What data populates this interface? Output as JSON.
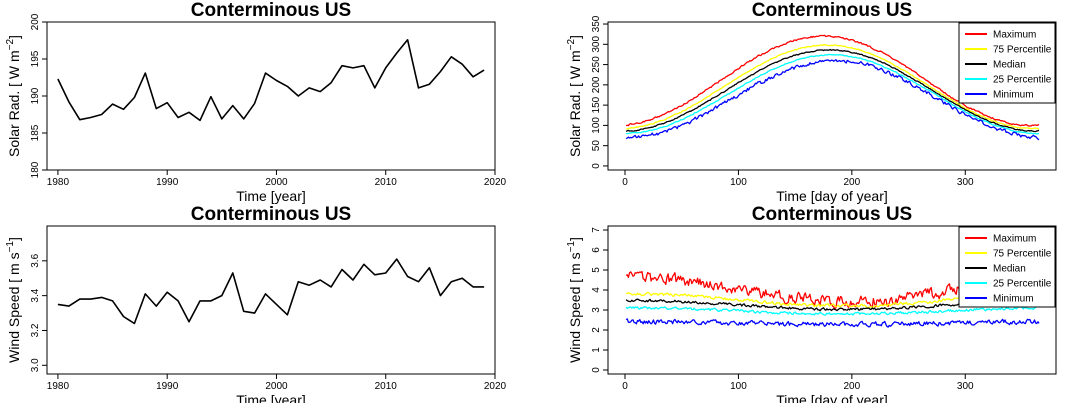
{
  "chart_data": [
    {
      "id": "solar-annual",
      "type": "line",
      "title": "Conterminous US",
      "xlabel": "Time [year]",
      "ylabel_main": "Solar Rad. [ W m",
      "ylabel_sup": "−2",
      "ylabel_close": "]",
      "xlim": [
        1979,
        2020
      ],
      "ylim": [
        180,
        200
      ],
      "xticks": [
        "1980",
        "1990",
        "2000",
        "2010",
        "2020"
      ],
      "yticks": [
        "180",
        "185",
        "190",
        "195",
        "200"
      ],
      "legend": [],
      "series": [
        {
          "color": "#000000",
          "x": [
            1980,
            1981,
            1982,
            1983,
            1984,
            1985,
            1986,
            1987,
            1988,
            1989,
            1990,
            1991,
            1992,
            1993,
            1994,
            1995,
            1996,
            1997,
            1998,
            1999,
            2000,
            2001,
            2002,
            2003,
            2004,
            2005,
            2006,
            2007,
            2008,
            2009,
            2010,
            2011,
            2012,
            2013,
            2014,
            2015,
            2016,
            2017,
            2018,
            2019
          ],
          "values": [
            192.3,
            189.2,
            186.8,
            187.1,
            187.5,
            188.9,
            188.2,
            189.8,
            193.1,
            188.3,
            189.1,
            187.1,
            187.8,
            186.7,
            189.9,
            186.9,
            188.7,
            186.9,
            189.0,
            193.1,
            192.1,
            191.3,
            190.0,
            191.1,
            190.6,
            191.8,
            194.1,
            193.8,
            194.1,
            191.1,
            193.8,
            195.8,
            197.6,
            191.1,
            191.6,
            193.3,
            195.3,
            194.3,
            192.6,
            193.5
          ]
        }
      ]
    },
    {
      "id": "solar-daily",
      "type": "line",
      "title": "Conterminous US",
      "xlabel": "Time [day of year]",
      "ylabel_main": "Solar Rad. [ W m",
      "ylabel_sup": "−2",
      "ylabel_close": "]",
      "xlim": [
        -15,
        380
      ],
      "ylim": [
        -10,
        355
      ],
      "xticks": [
        "0",
        "100",
        "200",
        "300"
      ],
      "yticks": [
        "0",
        "50",
        "100",
        "150",
        "200",
        "250",
        "300",
        "350"
      ],
      "legend_position": "top-right",
      "legend": [
        "Maximum",
        "75 Percentile",
        "Median",
        "25 Percentile",
        "Minimum"
      ],
      "day_range": [
        1,
        365
      ],
      "series": [
        {
          "name": "Maximum",
          "color": "#ff0000",
          "base": 100,
          "amp": 220,
          "peak_day": 175,
          "noise": 3
        },
        {
          "name": "75 Percentile",
          "color": "#ffff00",
          "base": 92,
          "amp": 206,
          "peak_day": 178,
          "noise": 2
        },
        {
          "name": "Median",
          "color": "#000000",
          "base": 86,
          "amp": 200,
          "peak_day": 180,
          "noise": 2
        },
        {
          "name": "25 Percentile",
          "color": "#00ffff",
          "base": 80,
          "amp": 194,
          "peak_day": 182,
          "noise": 2
        },
        {
          "name": "Minimum",
          "color": "#0000ff",
          "base": 70,
          "amp": 190,
          "peak_day": 185,
          "noise": 7
        }
      ]
    },
    {
      "id": "wind-annual",
      "type": "line",
      "title": "Conterminous US",
      "xlabel": "Time [year]",
      "ylabel_main": "Wind Speed [ m s",
      "ylabel_sup": "−1",
      "ylabel_close": "]",
      "xlim": [
        1979,
        2020
      ],
      "ylim": [
        2.95,
        3.8
      ],
      "xticks": [
        "1980",
        "1990",
        "2000",
        "2010",
        "2020"
      ],
      "yticks": [
        "3.0",
        "3.2",
        "3.4",
        "3.6"
      ],
      "legend": [],
      "series": [
        {
          "color": "#000000",
          "x": [
            1980,
            1981,
            1982,
            1983,
            1984,
            1985,
            1986,
            1987,
            1988,
            1989,
            1990,
            1991,
            1992,
            1993,
            1994,
            1995,
            1996,
            1997,
            1998,
            1999,
            2000,
            2001,
            2002,
            2003,
            2004,
            2005,
            2006,
            2007,
            2008,
            2009,
            2010,
            2011,
            2012,
            2013,
            2014,
            2015,
            2016,
            2017,
            2018,
            2019
          ],
          "values": [
            3.35,
            3.34,
            3.38,
            3.38,
            3.39,
            3.37,
            3.28,
            3.24,
            3.41,
            3.34,
            3.42,
            3.37,
            3.25,
            3.37,
            3.37,
            3.4,
            3.53,
            3.31,
            3.3,
            3.41,
            3.35,
            3.29,
            3.48,
            3.46,
            3.49,
            3.45,
            3.55,
            3.49,
            3.58,
            3.52,
            3.53,
            3.61,
            3.51,
            3.48,
            3.56,
            3.4,
            3.48,
            3.5,
            3.45,
            3.45
          ]
        }
      ]
    },
    {
      "id": "wind-daily",
      "type": "line",
      "title": "Conterminous US",
      "xlabel": "Time [day of year]",
      "ylabel_main": "Wind Speed [ m s",
      "ylabel_sup": "−1",
      "ylabel_close": "]",
      "xlim": [
        -15,
        380
      ],
      "ylim": [
        -0.2,
        7.2
      ],
      "xticks": [
        "0",
        "100",
        "200",
        "300"
      ],
      "yticks": [
        "0",
        "1",
        "2",
        "3",
        "4",
        "5",
        "6",
        "7"
      ],
      "legend_position": "top-right",
      "legend": [
        "Maximum",
        "75 Percentile",
        "Median",
        "25 Percentile",
        "Minimum"
      ],
      "day_range": [
        1,
        365
      ],
      "series": [
        {
          "name": "Maximum",
          "color": "#ff0000",
          "base": 4.0,
          "amp": 1.2,
          "peak_day": 15,
          "noise": 0.42
        },
        {
          "name": "75 Percentile",
          "color": "#ffff00",
          "base": 3.5,
          "amp": 0.6,
          "peak_day": 10,
          "noise": 0.12
        },
        {
          "name": "Median",
          "color": "#000000",
          "base": 3.25,
          "amp": 0.45,
          "peak_day": 10,
          "noise": 0.1
        },
        {
          "name": "25 Percentile",
          "color": "#00ffff",
          "base": 2.95,
          "amp": 0.3,
          "peak_day": 10,
          "noise": 0.1
        },
        {
          "name": "Minimum",
          "color": "#0000ff",
          "base": 2.35,
          "amp": 0.15,
          "peak_day": 10,
          "noise": 0.18
        }
      ]
    }
  ]
}
